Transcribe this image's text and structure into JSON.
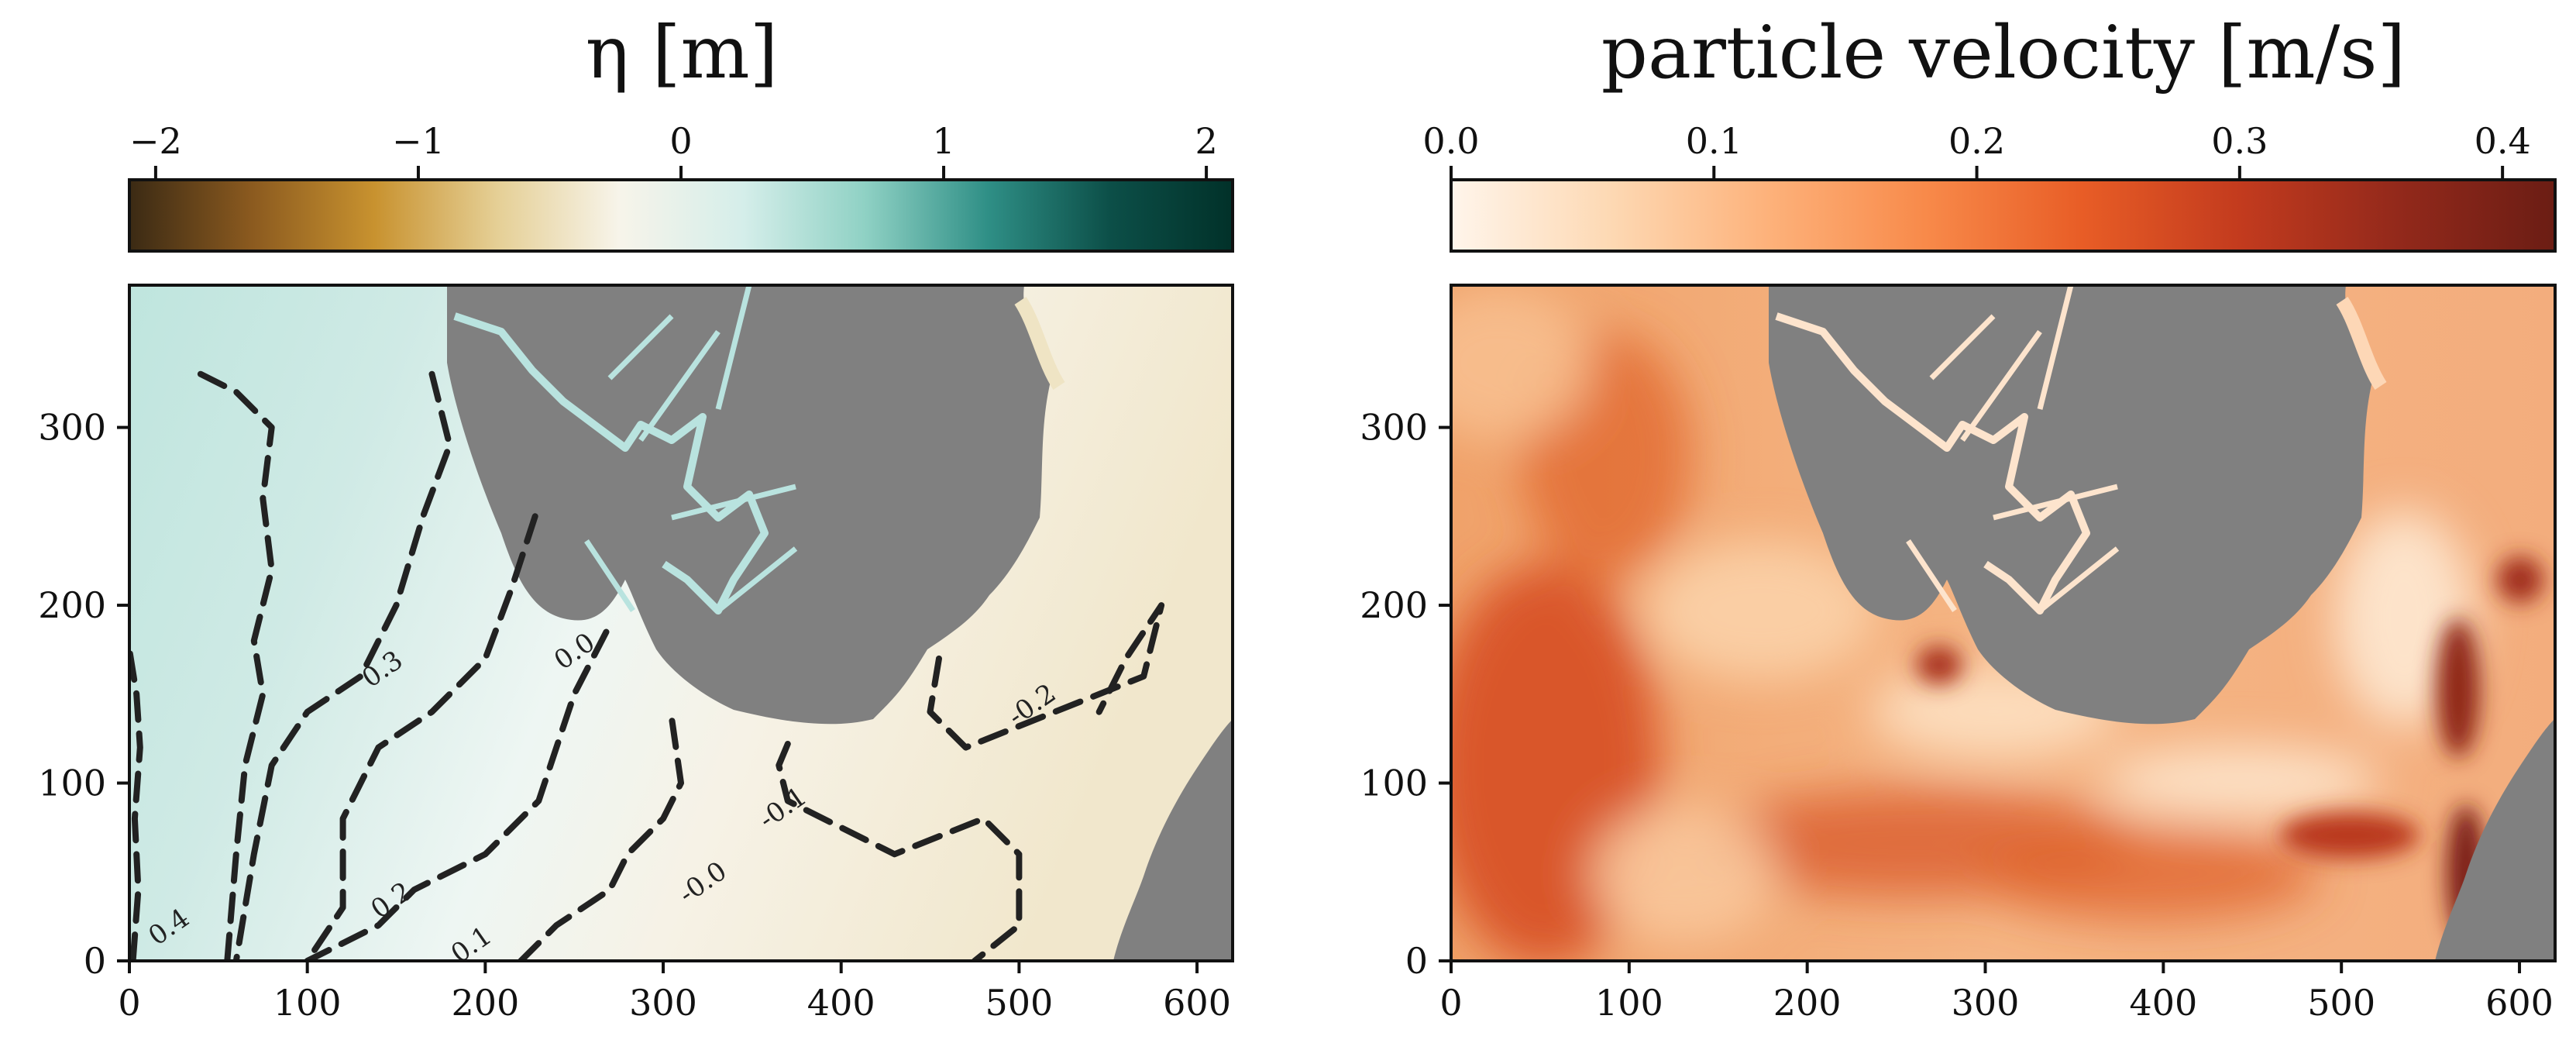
{
  "chart_data": [
    {
      "type": "heatmap",
      "title": "η [m]",
      "colorbar": {
        "label": "η [m]",
        "range": [
          -2.1,
          2.1
        ],
        "ticks": [
          -2,
          -1,
          0,
          1,
          2
        ],
        "tick_labels": [
          "−2",
          "−1",
          "0",
          "1",
          "2"
        ],
        "colormap": [
          "#3b2a14",
          "#8b5a1f",
          "#c8922f",
          "#e5cf95",
          "#f7f4ea",
          "#d5eeea",
          "#8fd1c4",
          "#2f8f86",
          "#0c4f48",
          "#013129"
        ]
      },
      "xlim": [
        0,
        620
      ],
      "ylim": [
        0,
        380
      ],
      "x_ticks": [
        0,
        100,
        200,
        300,
        400,
        500,
        600
      ],
      "y_ticks": [
        0,
        100,
        200,
        300
      ],
      "land_color": "#808080",
      "contours": [
        {
          "level": "0.4",
          "points": [
            [
              2,
              0
            ],
            [
              5,
              40
            ],
            [
              3,
              80
            ],
            [
              6,
              120
            ],
            [
              4,
              150
            ],
            [
              0,
              175
            ]
          ],
          "label_at": [
            25,
            15
          ]
        },
        {
          "level": "0.3",
          "points": [
            [
              40,
              330
            ],
            [
              60,
              320
            ],
            [
              80,
              300
            ],
            [
              75,
              260
            ],
            [
              80,
              220
            ],
            [
              70,
              180
            ],
            [
              75,
              150
            ],
            [
              65,
              110
            ],
            [
              60,
              60
            ],
            [
              55,
              0
            ]
          ],
          "label_at": [
            145,
            160
          ]
        },
        {
          "level": "0.2",
          "points": [
            [
              170,
              330
            ],
            [
              180,
              290
            ],
            [
              165,
              250
            ],
            [
              150,
              200
            ],
            [
              130,
              160
            ],
            [
              100,
              140
            ],
            [
              80,
              110
            ],
            [
              70,
              60
            ],
            [
              60,
              0
            ]
          ],
          "label_at": [
            150,
            30
          ]
        },
        {
          "level": "0.1",
          "points": [
            [
              228,
              250
            ],
            [
              215,
              210
            ],
            [
              200,
              170
            ],
            [
              170,
              140
            ],
            [
              140,
              120
            ],
            [
              120,
              80
            ],
            [
              120,
              30
            ],
            [
              100,
              0
            ]
          ],
          "label_at": [
            195,
            5
          ]
        },
        {
          "level": "0.0",
          "points": [
            [
              268,
              185
            ],
            [
              250,
              150
            ],
            [
              240,
              120
            ],
            [
              230,
              90
            ],
            [
              200,
              60
            ],
            [
              160,
              40
            ],
            [
              140,
              20
            ],
            [
              100,
              0
            ]
          ],
          "label_at": [
            253,
            170
          ]
        },
        {
          "level": "-0.0",
          "points": [
            [
              305,
              135
            ],
            [
              310,
              100
            ],
            [
              300,
              80
            ],
            [
              280,
              60
            ],
            [
              270,
              40
            ],
            [
              240,
              20
            ],
            [
              220,
              0
            ]
          ],
          "label_at": [
            325,
            40
          ]
        },
        {
          "level": "-0.1",
          "points": [
            [
              370,
              122
            ],
            [
              365,
              110
            ],
            [
              370,
              90
            ],
            [
              430,
              60
            ],
            [
              480,
              80
            ],
            [
              500,
              60
            ],
            [
              500,
              20
            ],
            [
              475,
              0
            ]
          ],
          "label_at": [
            370,
            82
          ]
        },
        {
          "level": "-0.2",
          "points": [
            [
              455,
              170
            ],
            [
              450,
              140
            ],
            [
              470,
              120
            ],
            [
              520,
              140
            ],
            [
              570,
              160
            ],
            [
              580,
              200
            ],
            [
              560,
              170
            ],
            [
              545,
              140
            ]
          ],
          "label_at": [
            510,
            140
          ]
        }
      ]
    },
    {
      "type": "heatmap",
      "title": "particle velocity [m/s]",
      "colorbar": {
        "label": "particle velocity [m/s]",
        "range": [
          0.0,
          0.42
        ],
        "ticks": [
          0.0,
          0.1,
          0.2,
          0.3,
          0.4
        ],
        "tick_labels": [
          "0.0",
          "0.1",
          "0.2",
          "0.3",
          "0.4"
        ],
        "colormap": [
          "#fff5eb",
          "#fdd9b4",
          "#fdb27b",
          "#f88a4a",
          "#e85d26",
          "#c33b1e",
          "#93291b",
          "#6b1d14"
        ]
      },
      "xlim": [
        0,
        620
      ],
      "ylim": [
        0,
        380
      ],
      "x_ticks": [
        0,
        100,
        200,
        300,
        400,
        500,
        600
      ],
      "y_ticks": [
        0,
        100,
        200,
        300
      ],
      "land_color": "#808080"
    }
  ]
}
